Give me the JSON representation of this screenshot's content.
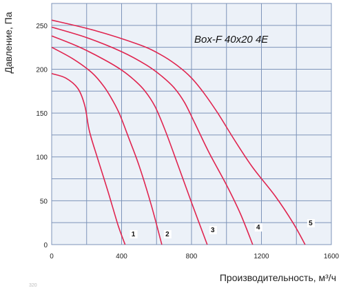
{
  "chart_data": {
    "type": "line",
    "title": "Box-F 40x20 4E",
    "xlabel": "Производительность, м³/ч",
    "ylabel": "Давление, Па",
    "xlim": [
      0,
      1600
    ],
    "ylim": [
      0,
      275
    ],
    "x_ticks": [
      "0",
      "400",
      "800",
      "1200",
      "1600"
    ],
    "y_ticks": [
      "0",
      "50",
      "100",
      "150",
      "200",
      "250"
    ],
    "grid": true,
    "colors": {
      "background": "#ecf1f8",
      "grid": "#7c93b9",
      "curve": "#e0244f"
    },
    "series": [
      {
        "name": "1",
        "x": [
          0,
          80,
          150,
          190,
          215,
          260,
          320,
          380,
          420
        ],
        "y": [
          195,
          190,
          178,
          158,
          130,
          100,
          62,
          22,
          0
        ]
      },
      {
        "name": "2",
        "x": [
          0,
          120,
          230,
          300,
          350,
          390,
          440,
          500,
          570,
          630
        ],
        "y": [
          225,
          212,
          196,
          180,
          164,
          148,
          122,
          90,
          45,
          0
        ]
      },
      {
        "name": "3",
        "x": [
          0,
          150,
          300,
          400,
          470,
          530,
          590,
          650,
          720,
          800,
          890
        ],
        "y": [
          238,
          226,
          211,
          199,
          188,
          176,
          158,
          130,
          92,
          48,
          0
        ]
      },
      {
        "name": "4",
        "x": [
          0,
          200,
          400,
          540,
          630,
          700,
          760,
          820,
          900,
          1000,
          1080,
          1150
        ],
        "y": [
          248,
          236,
          220,
          205,
          192,
          179,
          162,
          138,
          105,
          68,
          35,
          0
        ]
      },
      {
        "name": "5",
        "x": [
          0,
          250,
          500,
          620,
          720,
          800,
          870,
          950,
          1050,
          1150,
          1280,
          1380,
          1450
        ],
        "y": [
          256,
          244,
          228,
          217,
          204,
          190,
          173,
          150,
          118,
          88,
          55,
          25,
          0
        ]
      }
    ],
    "footer_text": "320"
  }
}
